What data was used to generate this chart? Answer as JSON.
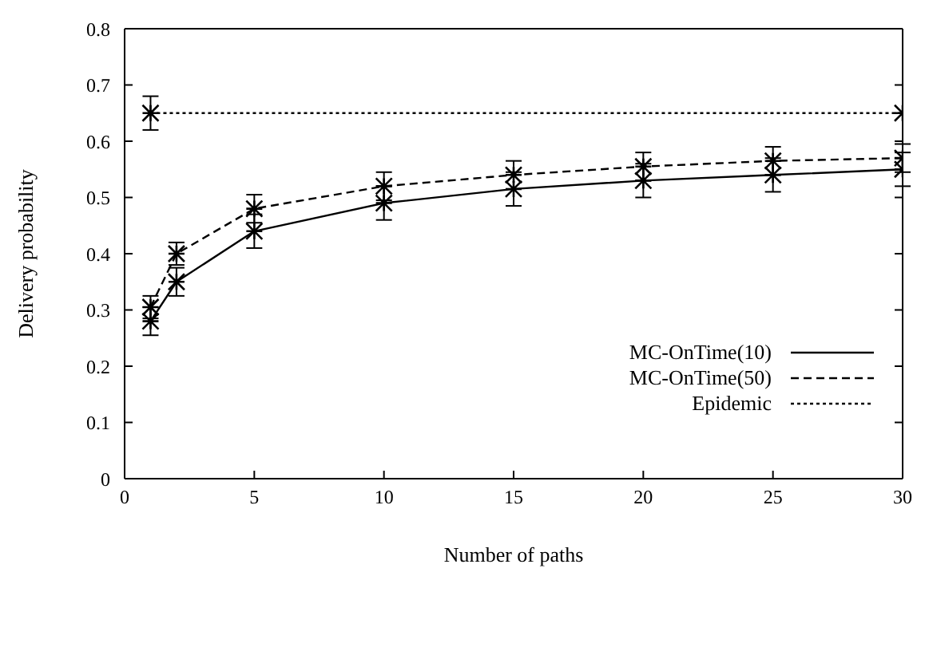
{
  "chart_data": {
    "type": "line",
    "xlabel": "Number of paths",
    "ylabel": "Delivery probability",
    "xlim": [
      0,
      30
    ],
    "xticks": [
      0,
      5,
      10,
      15,
      20,
      25,
      30
    ],
    "ylim": [
      0,
      0.8
    ],
    "yticks": [
      0,
      0.1,
      0.2,
      0.3,
      0.4,
      0.5,
      0.6,
      0.7,
      0.8
    ],
    "legend": "right",
    "series": [
      {
        "name": "MC-OnTime(10)",
        "color": "#000000",
        "line_style": "solid",
        "marker": "cross",
        "x": [
          1,
          2,
          5,
          10,
          15,
          20,
          25,
          30
        ],
        "values": [
          0.28,
          0.35,
          0.44,
          0.49,
          0.515,
          0.53,
          0.54,
          0.55
        ],
        "errors": [
          0.025,
          0.025,
          0.03,
          0.03,
          0.03,
          0.03,
          0.03,
          0.03
        ]
      },
      {
        "name": "MC-OnTime(50)",
        "color": "#000000",
        "line_style": "dashed",
        "marker": "cross",
        "x": [
          1,
          2,
          5,
          10,
          15,
          20,
          25,
          30
        ],
        "values": [
          0.305,
          0.4,
          0.48,
          0.52,
          0.54,
          0.555,
          0.565,
          0.57
        ],
        "errors": [
          0.02,
          0.02,
          0.025,
          0.025,
          0.025,
          0.025,
          0.025,
          0.025
        ]
      },
      {
        "name": "Epidemic",
        "color": "#000000",
        "line_style": "dotted",
        "marker": "cross",
        "x": [
          1,
          30
        ],
        "values": [
          0.65,
          0.65
        ],
        "errors": [
          0.03,
          null
        ]
      }
    ]
  }
}
